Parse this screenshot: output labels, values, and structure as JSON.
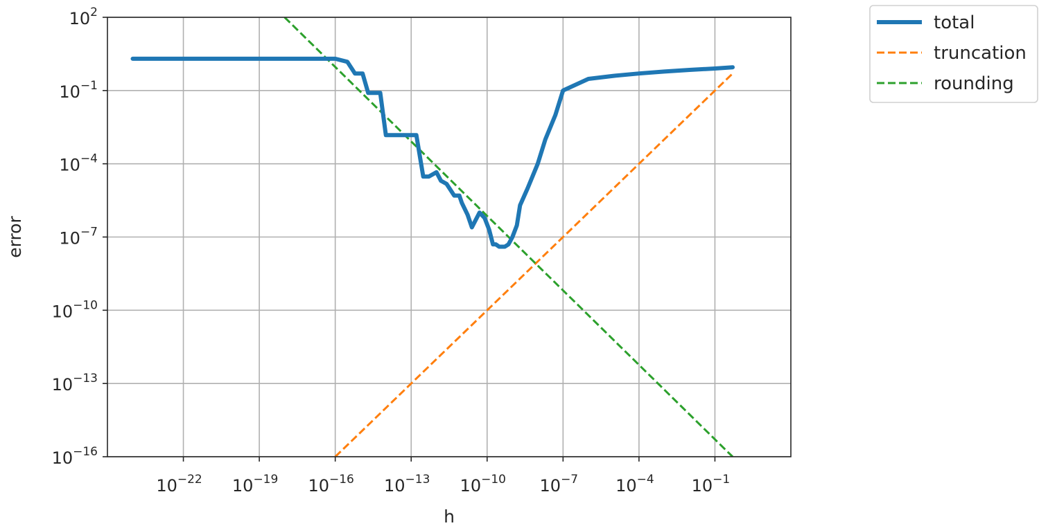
{
  "chart_data": {
    "type": "line",
    "xlabel": "h",
    "ylabel": "error",
    "xscale": "log",
    "yscale": "log",
    "xlim": [
      1e-25,
      100
    ],
    "ylim": [
      1e-16,
      100
    ],
    "xticks": [
      {
        "value": 1e-22,
        "base": "10",
        "exp": "−22"
      },
      {
        "value": 1e-19,
        "base": "10",
        "exp": "−19"
      },
      {
        "value": 1e-16,
        "base": "10",
        "exp": "−16"
      },
      {
        "value": 1e-13,
        "base": "10",
        "exp": "−13"
      },
      {
        "value": 1e-10,
        "base": "10",
        "exp": "−10"
      },
      {
        "value": 1e-07,
        "base": "10",
        "exp": "−7"
      },
      {
        "value": 0.0001,
        "base": "10",
        "exp": "−4"
      },
      {
        "value": 0.1,
        "base": "10",
        "exp": "−1"
      }
    ],
    "yticks": [
      {
        "value": 100,
        "base": "10",
        "exp": "2"
      },
      {
        "value": 0.1,
        "base": "10",
        "exp": "−1"
      },
      {
        "value": 0.0001,
        "base": "10",
        "exp": "−4"
      },
      {
        "value": 1e-07,
        "base": "10",
        "exp": "−7"
      },
      {
        "value": 1e-10,
        "base": "10",
        "exp": "−10"
      },
      {
        "value": 1e-13,
        "base": "10",
        "exp": "−13"
      },
      {
        "value": 1e-16,
        "base": "10",
        "exp": "−16"
      }
    ],
    "grid": true,
    "legend_position": "outside-top-right",
    "series": [
      {
        "name": "total",
        "color": "#1f77b4",
        "style": "solid",
        "x": [
          1e-24,
          1e-20,
          1e-16,
          3e-16,
          6e-16,
          1.2e-15,
          2e-15,
          3e-15,
          4.5e-15,
          6e-15,
          1e-14,
          3e-14,
          4e-14,
          5e-14,
          1e-13,
          1.2e-13,
          1.6e-13,
          3e-13,
          5e-13,
          1e-12,
          1.5e-12,
          2.5e-12,
          5e-12,
          8e-12,
          1e-11,
          1.7e-11,
          2.5e-11,
          5e-11,
          8e-11,
          1.2e-10,
          1.7e-10,
          2.2e-10,
          3e-10,
          4e-10,
          5e-10,
          7e-10,
          1e-09,
          1.5e-09,
          2e-09,
          4e-09,
          1e-08,
          2e-08,
          5e-08,
          1e-07,
          1e-06,
          1e-05,
          0.0001,
          0.001,
          0.01,
          0.1,
          0.5
        ],
        "y": [
          2,
          2,
          2,
          1.5,
          0.5,
          0.5,
          0.08,
          0.08,
          0.08,
          0.08,
          0.0015,
          0.0015,
          0.0015,
          0.0015,
          0.0015,
          0.0015,
          0.0015,
          3e-05,
          3e-05,
          4.5e-05,
          2e-05,
          1.5e-05,
          5e-06,
          5e-06,
          2.5e-06,
          8e-07,
          2.5e-07,
          1e-06,
          6e-07,
          2e-07,
          5e-08,
          5e-08,
          4e-08,
          4e-08,
          4e-08,
          5e-08,
          1e-07,
          3e-07,
          2e-06,
          1e-05,
          0.0001,
          0.001,
          0.01,
          0.1,
          0.3,
          0.4,
          0.5,
          0.6,
          0.7,
          0.8,
          0.9
        ],
        "y_model": "piecewise"
      },
      {
        "name": "truncation",
        "color": "#ff7f0e",
        "style": "dashed",
        "x": [
          1e-16,
          0.5
        ],
        "y": [
          1e-16,
          0.5
        ]
      },
      {
        "name": "rounding",
        "color": "#2ca02c",
        "style": "dashed",
        "x": [
          1e-18,
          0.5
        ],
        "y": [
          100,
          1e-16
        ]
      }
    ]
  }
}
